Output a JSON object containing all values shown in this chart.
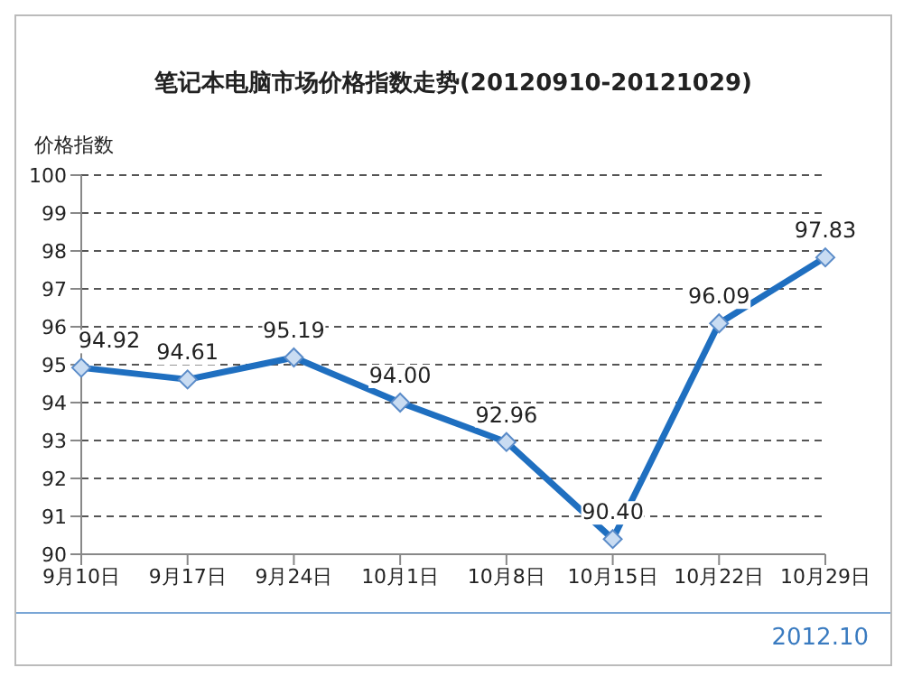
{
  "chart_data": {
    "type": "line",
    "title": "笔记本电脑市场价格指数走势(20120910-20121029)",
    "ylabel": "价格指数",
    "categories": [
      "9月10日",
      "9月17日",
      "9月24日",
      "10月1日",
      "10月8日",
      "10月15日",
      "10月22日",
      "10月29日"
    ],
    "series": [
      {
        "color": "#1f6fc0",
        "values": [
          94.92,
          94.61,
          95.19,
          94.0,
          92.96,
          90.4,
          96.09,
          97.83
        ],
        "value_labels": [
          "94.92",
          "94.61",
          "95.19",
          "94.00",
          "92.96",
          "90.40",
          "96.09",
          "97.83"
        ]
      }
    ],
    "ylim": [
      90,
      100
    ],
    "yticks": [
      90,
      91,
      92,
      93,
      94,
      95,
      96,
      97,
      98,
      99,
      100
    ],
    "grid": "y",
    "marker": "diamond",
    "line_style": "solid",
    "annotations": [
      "2012.10"
    ]
  }
}
